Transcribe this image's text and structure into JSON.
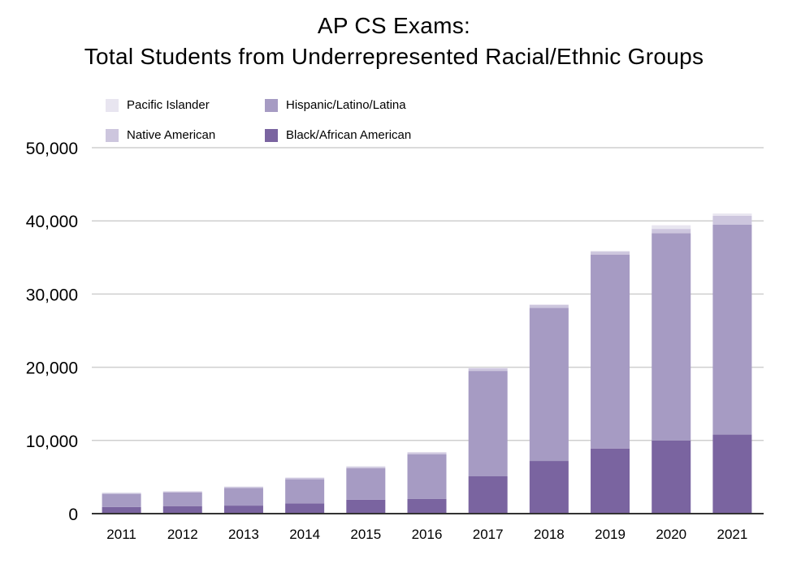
{
  "chart_data": {
    "type": "bar",
    "stacked": true,
    "title_line1": "AP CS Exams:",
    "title_line2": "Total Students from Underrepresented Racial/Ethnic Groups",
    "xlabel": "",
    "ylabel": "",
    "ylim": [
      0,
      50000
    ],
    "yticks": [
      0,
      10000,
      20000,
      30000,
      40000,
      50000
    ],
    "ytick_labels": [
      "0",
      "10,000",
      "20,000",
      "30,000",
      "40,000",
      "50,000"
    ],
    "grid": true,
    "legend_placement": "top-left",
    "categories": [
      "2011",
      "2012",
      "2013",
      "2014",
      "2015",
      "2016",
      "2017",
      "2018",
      "2019",
      "2020",
      "2021"
    ],
    "series": [
      {
        "name": "Black/African American",
        "color": "#7a64a0",
        "values": [
          900,
          1000,
          1100,
          1400,
          1900,
          2000,
          5100,
          7200,
          8900,
          10000,
          10800
        ]
      },
      {
        "name": "Hispanic/Latino/Latina",
        "color": "#a69bc3",
        "values": [
          1800,
          1900,
          2400,
          3300,
          4300,
          6100,
          14400,
          20900,
          26500,
          28300,
          28700
        ]
      },
      {
        "name": "Native American",
        "color": "#cdc6de",
        "values": [
          120,
          130,
          150,
          180,
          200,
          250,
          350,
          400,
          400,
          600,
          1200
        ]
      },
      {
        "name": "Pacific Islander",
        "color": "#e8e5f0",
        "values": [
          60,
          60,
          60,
          70,
          80,
          80,
          100,
          100,
          100,
          500,
          300
        ]
      }
    ]
  },
  "legend": [
    {
      "label": "Pacific Islander",
      "color": "#e8e5f0"
    },
    {
      "label": "Hispanic/Latino/Latina",
      "color": "#a69bc3"
    },
    {
      "label": "Native American",
      "color": "#cdc6de"
    },
    {
      "label": "Black/African American",
      "color": "#7a64a0"
    }
  ]
}
